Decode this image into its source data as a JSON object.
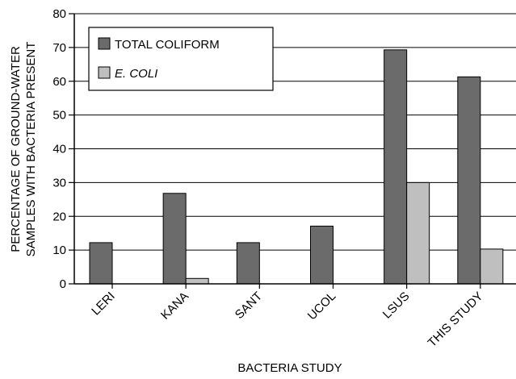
{
  "chart_data": {
    "type": "bar",
    "title": "",
    "xlabel": "BACTERIA STUDY",
    "ylabel_lines": [
      "PERCENTAGE OF GROUND-WATER",
      "SAMPLES WITH BACTERIA PRESENT"
    ],
    "categories": [
      "LERI",
      "KANA",
      "SANT",
      "UCOL",
      "LSUS",
      "THIS STUDY"
    ],
    "ylim": [
      0,
      80
    ],
    "yticks": [
      0,
      10,
      20,
      30,
      40,
      50,
      60,
      70,
      80
    ],
    "grid": "horizontal",
    "legend_position": "top-left",
    "series": [
      {
        "name": "TOTAL COLIFORM",
        "italic": false,
        "color": "#6b6b6b",
        "values": [
          12.2,
          26.8,
          12.2,
          17.1,
          69.3,
          61.3
        ]
      },
      {
        "name": "E. COLI",
        "italic": true,
        "color": "#bfbfbf",
        "values": [
          null,
          1.6,
          null,
          null,
          30.0,
          10.3
        ]
      }
    ]
  }
}
